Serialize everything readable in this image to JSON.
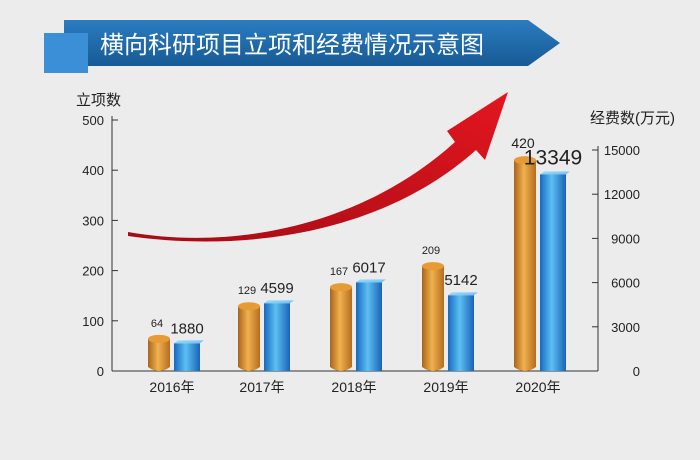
{
  "chart_data": {
    "type": "bar",
    "title": "横向科研项目立项和经费情况示意图",
    "categories": [
      "2016年",
      "2017年",
      "2018年",
      "2019年",
      "2020年"
    ],
    "series": [
      {
        "name": "立项数",
        "axis": "left",
        "values": [
          64,
          129,
          167,
          209,
          420
        ],
        "color": "#e8a23c"
      },
      {
        "name": "经费数",
        "axis": "right",
        "values": [
          1880,
          4599,
          6017,
          5142,
          13349
        ],
        "color": "#3ba7e6"
      }
    ],
    "left_axis": {
      "label": "立项数",
      "range": [
        0,
        500
      ],
      "ticks": [
        "0",
        "100",
        "200",
        "300",
        "400",
        "500"
      ]
    },
    "right_axis": {
      "label": "经费数(万元)",
      "range": [
        0,
        15000
      ],
      "ticks": [
        "0",
        "3000",
        "6000",
        "9000",
        "12000",
        "15000"
      ]
    },
    "colors": {
      "title_bar": "#1f6aa8",
      "title_square": "#3a8fd6",
      "arrow": "#c8101c",
      "funding_label": "#c8101c"
    },
    "grid": false
  }
}
